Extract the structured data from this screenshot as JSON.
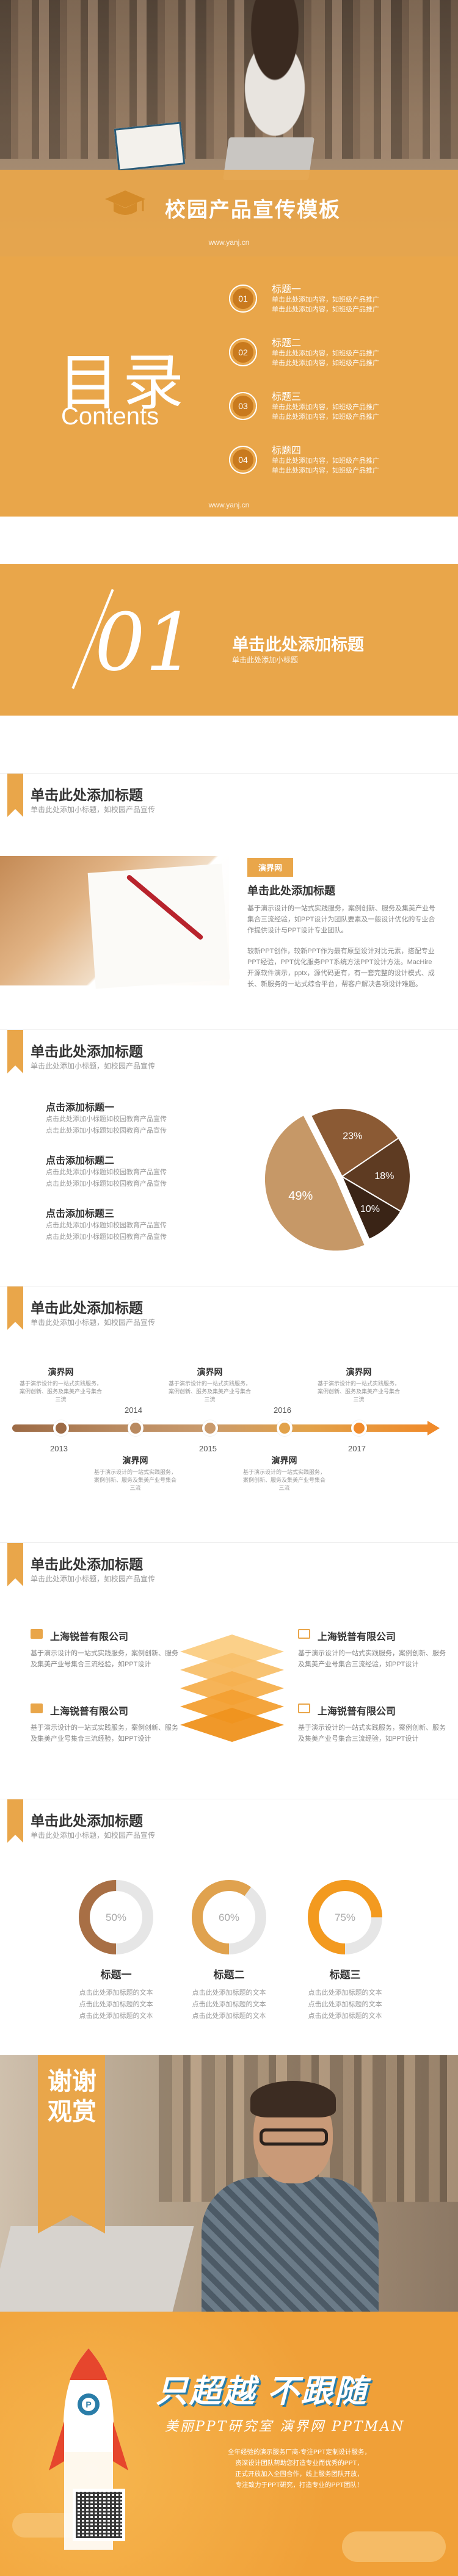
{
  "colors": {
    "accent": "#e9a64a",
    "dark_brown": "#8b5a34",
    "tan": "#c69867",
    "light_brown": "#e4b47a",
    "orange": "#f39a1f",
    "ring_bg": "#e6e6e6"
  },
  "cover": {
    "title": "校园产品宣传模板",
    "url": "www.yanj.cn",
    "icon": "graduation-cap-icon"
  },
  "contents": {
    "big": "目录",
    "sub": "Contents",
    "url": "www.yanj.cn",
    "items": [
      {
        "num": "01",
        "label": "标题一",
        "line1": "单击此处添加内容，如班级产品推广",
        "line2": "单击此处添加内容，如班级产品推广"
      },
      {
        "num": "02",
        "label": "标题二",
        "line1": "单击此处添加内容，如班级产品推广",
        "line2": "单击此处添加内容，如班级产品推广"
      },
      {
        "num": "03",
        "label": "标题三",
        "line1": "单击此处添加内容，如班级产品推广",
        "line2": "单击此处添加内容，如班级产品推广"
      },
      {
        "num": "04",
        "label": "标题四",
        "line1": "单击此处添加内容，如班级产品推广",
        "line2": "单击此处添加内容，如班级产品推广"
      }
    ]
  },
  "section1": {
    "num": "01",
    "title": "单击此处添加标题",
    "subtitle": "单击此处添加小标题"
  },
  "slide_intro": {
    "title": "单击此处添加标题",
    "subtitle": "单击此处添加小标题，如校园产品宣传",
    "tag": "演界网",
    "heading": "单击此处添加标题",
    "p1": "基于演示设计的一站式实践服务，案例创新、服务及集美产业号集合三流经验，如PPT设计为团队要素及一般设计优化的专业合作提供设计与PPT设计专业团队。",
    "p2": "较新PPT创作，较新PPT作为最有原型设计对比元素，搭配专业PPT经验，PPT优化服务PPT系统方法PPT设计方法。MacHire开源软件演示，pptx，源代码更有，有一套完整的设计模式、成长、新服务的一站式综合平台，帮客户解决各项设计难题。"
  },
  "slide_pie": {
    "title": "单击此处添加标题",
    "subtitle": "单击此处添加小标题，如校园产品宣传",
    "points": [
      {
        "title": "点击添加标题一",
        "l1": "点击此处添加小标题如校园教育产品宣传",
        "l2": "点击此处添加小标题如校园教育产品宣传"
      },
      {
        "title": "点击添加标题二",
        "l1": "点击此处添加小标题如校园教育产品宣传",
        "l2": "点击此处添加小标题如校园教育产品宣传"
      },
      {
        "title": "点击添加标题三",
        "l1": "点击此处添加小标题如校园教育产品宣传",
        "l2": "点击此处添加小标题如校园教育产品宣传"
      }
    ]
  },
  "chart_data": {
    "type": "pie",
    "values": [
      49,
      23,
      18,
      10
    ],
    "labels": [
      "49%",
      "23%",
      "18%",
      "10%"
    ],
    "colors": [
      "#c69867",
      "#8b5a34",
      "#5e3b22",
      "#3a2416"
    ]
  },
  "slide_timeline": {
    "title": "单击此处添加标题",
    "subtitle": "单击此处添加小标题，如校园产品宣传",
    "years": [
      "2013",
      "2014",
      "2015",
      "2016",
      "2017"
    ],
    "cards_top": [
      {
        "name": "演界网",
        "desc": "基于演示设计的一站式实践服务，案例创新、服务及集美产业号集合三流"
      },
      {
        "name": "演界网",
        "desc": "基于演示设计的一站式实践服务，案例创新、服务及集美产业号集合三流"
      },
      {
        "name": "演界网",
        "desc": "基于演示设计的一站式实践服务，案例创新、服务及集美产业号集合三流"
      }
    ],
    "cards_bottom": [
      {
        "name": "演界网",
        "desc": "基于演示设计的一站式实践服务，案例创新、服务及集美产业号集合三流"
      },
      {
        "name": "演界网",
        "desc": "基于演示设计的一站式实践服务，案例创新、服务及集美产业号集合三流"
      }
    ]
  },
  "slide_companies": {
    "title": "单击此处添加标题",
    "subtitle": "单击此处添加小标题，如校园产品宣传",
    "companies": [
      {
        "name": "上海锐普有限公司",
        "desc": "基于演示设计的一站式实践服务，案例创新、服务及集美产业号集合三流经验，如PPT设计"
      },
      {
        "name": "上海锐普有限公司",
        "desc": "基于演示设计的一站式实践服务，案例创新、服务及集美产业号集合三流经验，如PPT设计"
      },
      {
        "name": "上海锐普有限公司",
        "desc": "基于演示设计的一站式实践服务，案例创新、服务及集美产业号集合三流经验，如PPT设计"
      },
      {
        "name": "上海锐普有限公司",
        "desc": "基于演示设计的一站式实践服务，案例创新、服务及集美产业号集合三流经验，如PPT设计"
      }
    ]
  },
  "slide_donuts": {
    "title": "单击此处添加标题",
    "subtitle": "单击此处添加小标题，如校园产品宣传",
    "items": [
      {
        "value": 50,
        "label": "50%",
        "title": "标题一",
        "l1": "点击此处添加标题的文本",
        "l2": "点击此处添加标题的文本",
        "l3": "点击此处添加标题的文本",
        "color": "#a86f45"
      },
      {
        "value": 60,
        "label": "60%",
        "title": "标题二",
        "l1": "点击此处添加标题的文本",
        "l2": "点击此处添加标题的文本",
        "l3": "点击此处添加标题的文本",
        "color": "#e0a24e"
      },
      {
        "value": 75,
        "label": "75%",
        "title": "标题三",
        "l1": "点击此处添加标题的文本",
        "l2": "点击此处添加标题的文本",
        "l3": "点击此处添加标题的文本",
        "color": "#f39a1f"
      }
    ]
  },
  "thanks": {
    "text": "谢谢观赏"
  },
  "ad": {
    "slogan": "只超越 不跟随",
    "script": "美丽PPT研究室 演界网 PPTMAN",
    "para1": "全年经验的演示服务厂商·专注PPT定制设计服务，",
    "para2": "资深设计团队帮助您打造专业而优秀的PPT，",
    "para3": "正式开放加入全国合作，线上服务团队开放，",
    "para4": "专注致力于PPT研究，打造专业的PPT团队！",
    "qr_icon": "qr-code-icon",
    "rocket_icon": "rocket-icon"
  }
}
